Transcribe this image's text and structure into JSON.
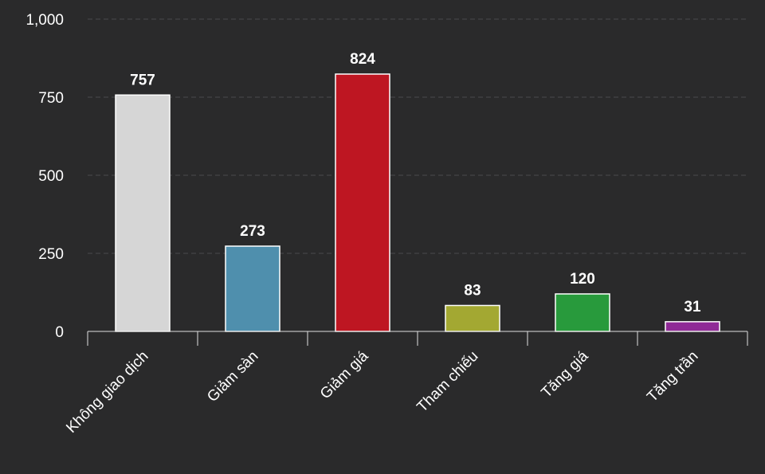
{
  "chart_data": {
    "type": "bar",
    "title": "",
    "xlabel": "",
    "ylabel": "",
    "categories": [
      "Không giao dịch",
      "Giảm sàn",
      "Giảm giá",
      "Tham chiếu",
      "Tăng giá",
      "Tăng trần"
    ],
    "values": [
      757,
      273,
      824,
      83,
      120,
      31
    ],
    "bar_colors": [
      "#d6d6d6",
      "#4f8fad",
      "#be1622",
      "#a3a832",
      "#289a3c",
      "#8f2a96"
    ],
    "ylim": [
      0,
      1000
    ],
    "yticks": [
      0,
      250,
      500,
      750,
      1000
    ],
    "ytick_labels": [
      "0",
      "250",
      "500",
      "750",
      "1,000"
    ],
    "grid": true,
    "data_labels": true,
    "legend": "none"
  }
}
